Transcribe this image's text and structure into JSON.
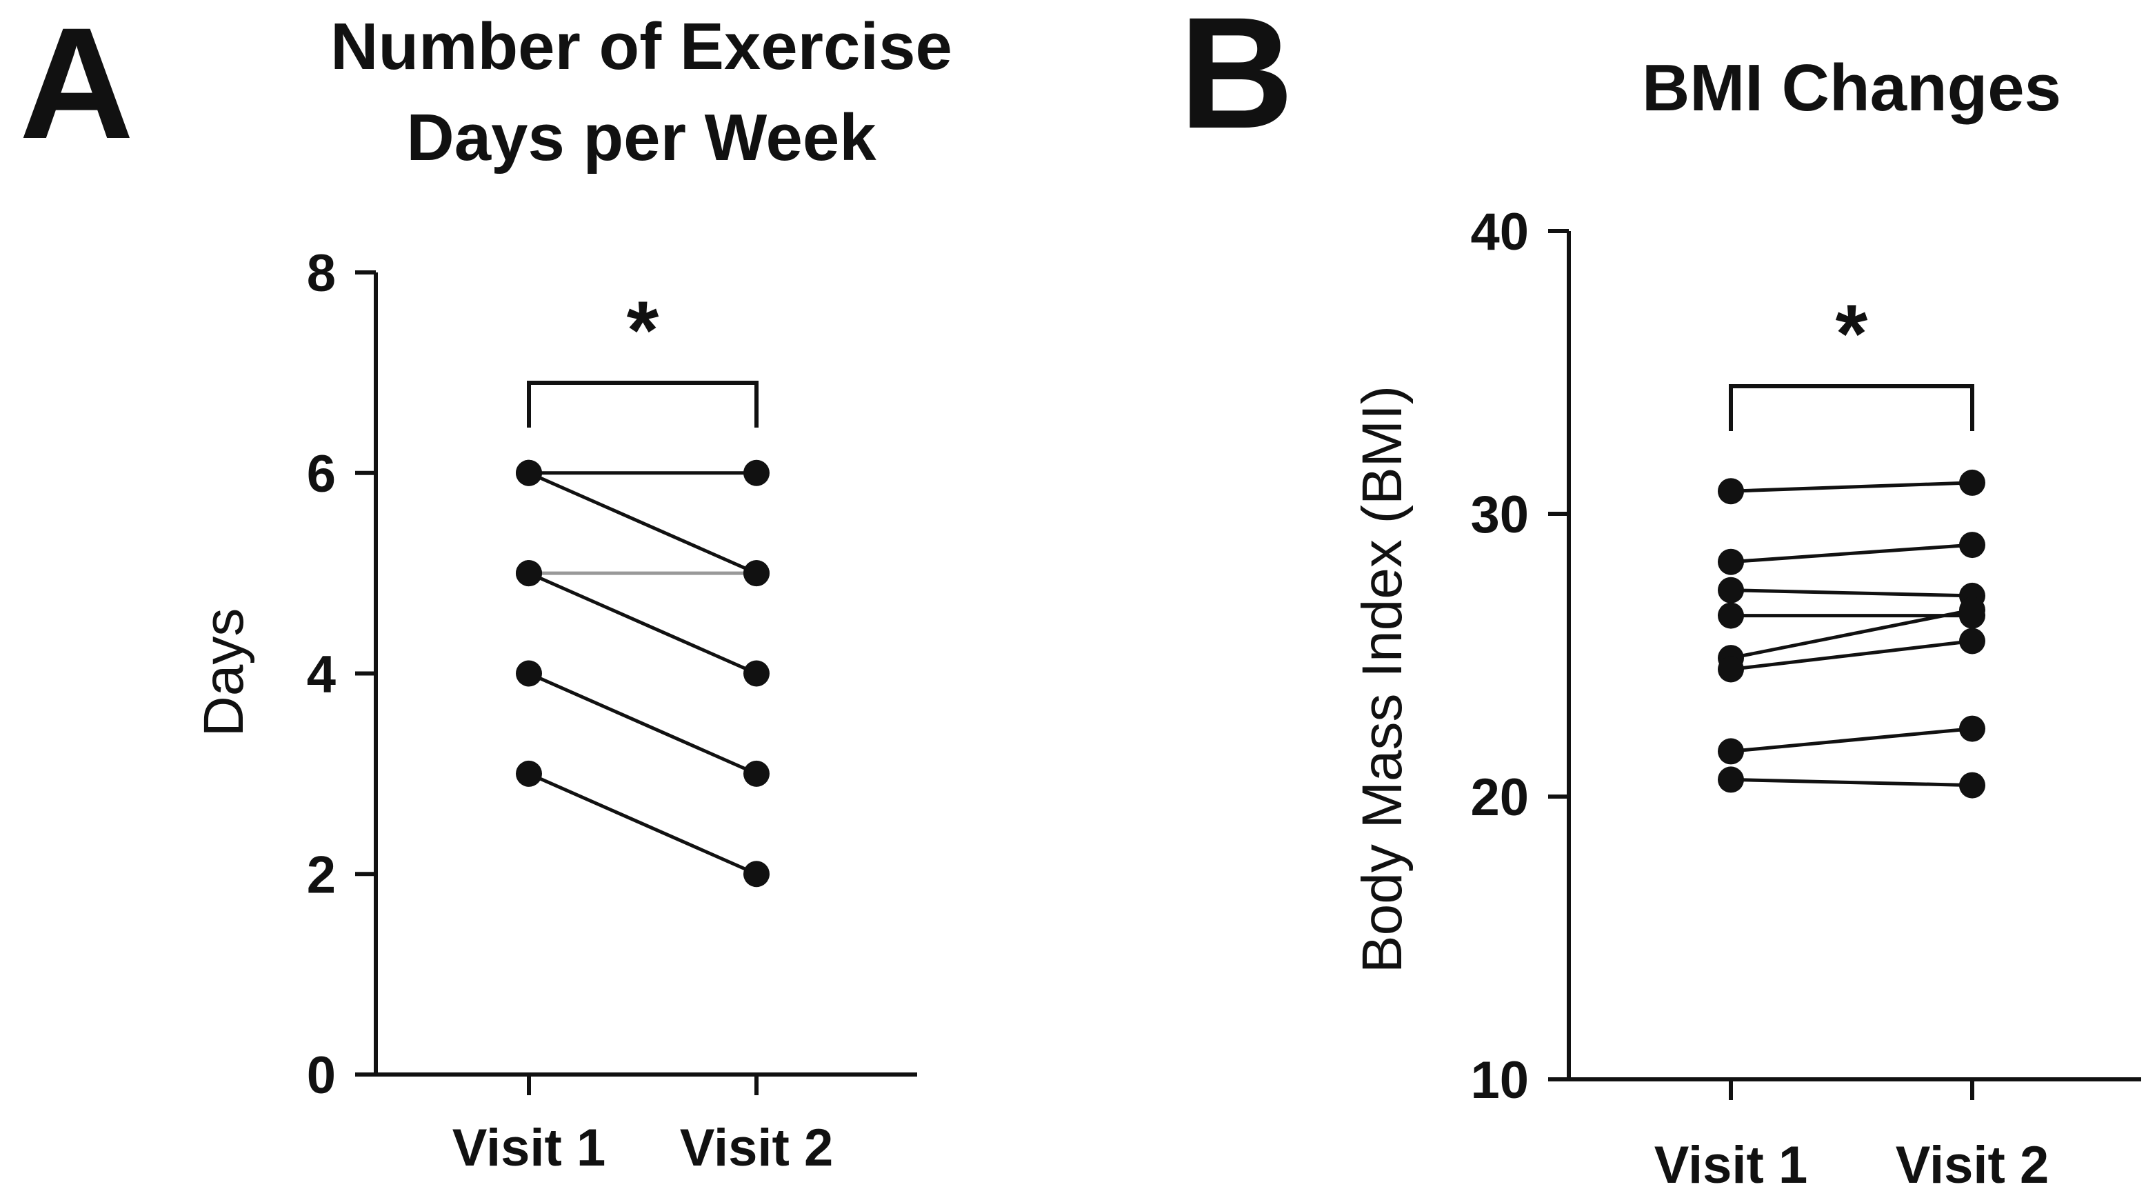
{
  "figure": {
    "panel_a_letter": "A",
    "panel_b_letter": "B"
  },
  "chart_data": [
    {
      "type": "line",
      "panel": "A",
      "title_lines": [
        "Number of Exercise",
        "Days per Week"
      ],
      "xlabel": "",
      "ylabel": "Days",
      "categories": [
        "Visit 1",
        "Visit 2"
      ],
      "yticks": [
        "0",
        "2",
        "4",
        "6",
        "8"
      ],
      "ylim": [
        0,
        8
      ],
      "significance": "*",
      "series": [
        {
          "name": "p1",
          "values": [
            6,
            6
          ],
          "color": "#111111"
        },
        {
          "name": "p2",
          "values": [
            6,
            5
          ],
          "color": "#111111"
        },
        {
          "name": "p3",
          "values": [
            5,
            5
          ],
          "color": "#999999"
        },
        {
          "name": "p4",
          "values": [
            5,
            4
          ],
          "color": "#111111"
        },
        {
          "name": "p5",
          "values": [
            4,
            3
          ],
          "color": "#111111"
        },
        {
          "name": "p6",
          "values": [
            3,
            2
          ],
          "color": "#111111"
        }
      ]
    },
    {
      "type": "line",
      "panel": "B",
      "title_lines": [
        "BMI Changes"
      ],
      "xlabel": "",
      "ylabel": "Body Mass  Index (BMI)",
      "categories": [
        "Visit 1",
        "Visit 2"
      ],
      "yticks": [
        "10",
        "20",
        "30",
        "40"
      ],
      "ylim": [
        10,
        40
      ],
      "significance": "*",
      "series": [
        {
          "name": "p1",
          "values": [
            30.8,
            31.1
          ],
          "color": "#111111"
        },
        {
          "name": "p2",
          "values": [
            28.3,
            28.9
          ],
          "color": "#111111"
        },
        {
          "name": "p3",
          "values": [
            27.3,
            27.1
          ],
          "color": "#111111"
        },
        {
          "name": "p4",
          "values": [
            26.4,
            26.4
          ],
          "color": "#111111"
        },
        {
          "name": "p5",
          "values": [
            24.9,
            26.6
          ],
          "color": "#111111"
        },
        {
          "name": "p6",
          "values": [
            24.5,
            25.5
          ],
          "color": "#111111"
        },
        {
          "name": "p7",
          "values": [
            21.6,
            22.4
          ],
          "color": "#111111"
        },
        {
          "name": "p8",
          "values": [
            20.6,
            20.4
          ],
          "color": "#111111"
        }
      ]
    }
  ]
}
